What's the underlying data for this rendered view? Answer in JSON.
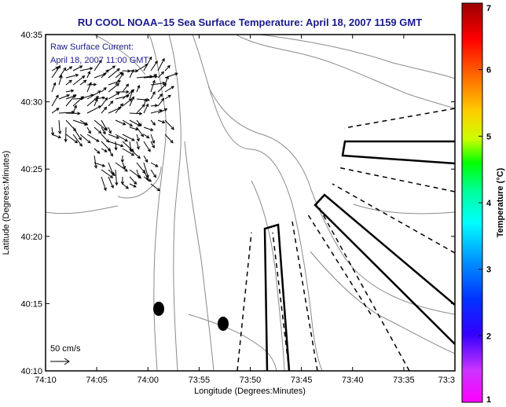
{
  "chart_data": {
    "type": "map",
    "title": "RU COOL  NOAA–15  Sea Surface Temperature:  April 18, 2007 1159 GMT",
    "annotation_lines": [
      "Raw Surface Current:",
      "April 18, 2007 11:00 GMT"
    ],
    "xlabel": "Longitude (Degrees:Minutes)",
    "ylabel": "Latitude (Degrees:Minutes)",
    "x_tick_labels": [
      "74:10",
      "74:05",
      "74:00",
      "73:55",
      "73:50",
      "73:45",
      "73:40",
      "73:35",
      "73:3"
    ],
    "y_tick_labels": [
      "40:10",
      "40:15",
      "40:20",
      "40:25",
      "40:30",
      "40:35"
    ],
    "xlim_minutes_west": [
      4450,
      4410
    ],
    "ylim_minutes_north": [
      2410,
      2435
    ],
    "scale_label": "50 cm/s",
    "colorbar": {
      "label": "Temperature (°C)",
      "tick_labels": [
        "1",
        "2",
        "3",
        "4",
        "5",
        "6",
        "7"
      ],
      "range": [
        1,
        7
      ]
    },
    "grid": false,
    "colors": {
      "frame": "#000000",
      "title": "#1a1a8c",
      "annotation": "#1a1a8c",
      "contour": "#8a8a8a"
    },
    "markers": [
      {
        "name": "black-dot",
        "lon": "73:58.9",
        "lat": "40:14.6"
      },
      {
        "name": "black-dot",
        "lon": "73:52.2",
        "lat": "40:13.5"
      }
    ]
  }
}
